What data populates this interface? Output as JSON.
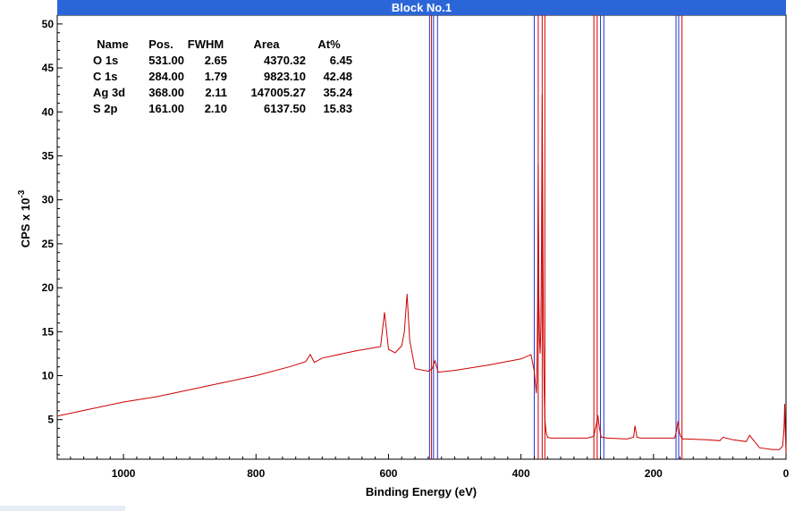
{
  "chart_data": {
    "type": "line",
    "title": "Block No.1",
    "xlabel": "Binding Energy (eV)",
    "ylabel": "CPS x 10",
    "ylabel_exponent": "-3",
    "xlim": [
      1100,
      0
    ],
    "ylim": [
      0.5,
      51
    ],
    "x_reversed": true,
    "x_ticks": [
      1000,
      800,
      600,
      400,
      200,
      0
    ],
    "y_ticks": [
      5,
      10,
      15,
      20,
      25,
      30,
      35,
      40,
      45,
      50
    ],
    "grid": false,
    "series": [
      {
        "color": "#cc0000",
        "x": [
          1100,
          1050,
          1000,
          950,
          900,
          850,
          800,
          750,
          725,
          718,
          712,
          700,
          650,
          620,
          612,
          606,
          600,
          590,
          580,
          576,
          572,
          568,
          560,
          540,
          534,
          530,
          525,
          500,
          450,
          400,
          385,
          380,
          378,
          377,
          376,
          375,
          374,
          373,
          372,
          371,
          370,
          369,
          368,
          367,
          366,
          365,
          364,
          362,
          360,
          355,
          340,
          300,
          290,
          286,
          284,
          282,
          279,
          270,
          240,
          230,
          228,
          225,
          220,
          200,
          180,
          168,
          165,
          163,
          161,
          159,
          156,
          150,
          120,
          100,
          95,
          80,
          60,
          55,
          40,
          20,
          10,
          5,
          3,
          2,
          1,
          0
        ],
        "values": [
          5.4,
          6.2,
          7.0,
          7.6,
          8.4,
          9.2,
          10.0,
          11.0,
          11.6,
          12.4,
          11.5,
          12.0,
          12.8,
          13.2,
          13.3,
          17.2,
          13.0,
          12.6,
          13.4,
          15.0,
          19.3,
          14.0,
          10.8,
          10.5,
          10.8,
          11.7,
          10.4,
          10.6,
          11.2,
          11.9,
          12.4,
          10.5,
          9.0,
          8.0,
          9.5,
          17.8,
          34.0,
          19.0,
          14.0,
          12.5,
          16.0,
          25.0,
          42.0,
          26.0,
          14.0,
          8.0,
          5.0,
          3.5,
          3.0,
          2.9,
          2.9,
          2.9,
          3.1,
          4.6,
          5.5,
          4.2,
          3.0,
          2.9,
          2.8,
          3.0,
          4.3,
          3.0,
          2.9,
          2.9,
          2.9,
          2.9,
          3.8,
          4.8,
          3.6,
          3.1,
          2.8,
          2.8,
          2.7,
          2.6,
          3.0,
          2.7,
          2.5,
          3.2,
          1.8,
          1.6,
          1.6,
          2.0,
          4.0,
          6.8,
          3.5,
          1.2
        ]
      }
    ],
    "annotations": {
      "blue_lines": [
        538,
        532,
        526,
        380,
        280,
        275,
        166,
        162
      ],
      "red_lines": [
        535,
        374,
        368,
        364,
        290,
        285,
        157
      ],
      "blue_color": "#2233cc",
      "red_color": "#cc0000"
    },
    "table": {
      "headers": [
        "Name",
        "Pos.",
        "FWHM",
        "Area",
        "At%"
      ],
      "rows": [
        [
          "O 1s",
          "531.00",
          "2.65",
          "4370.32",
          "6.45"
        ],
        [
          "C 1s",
          "284.00",
          "1.79",
          "9823.10",
          "42.48"
        ],
        [
          "Ag 3d",
          "368.00",
          "2.11",
          "147005.27",
          "35.24"
        ],
        [
          "S 2p",
          "161.00",
          "2.10",
          "6137.50",
          "15.83"
        ]
      ]
    }
  }
}
